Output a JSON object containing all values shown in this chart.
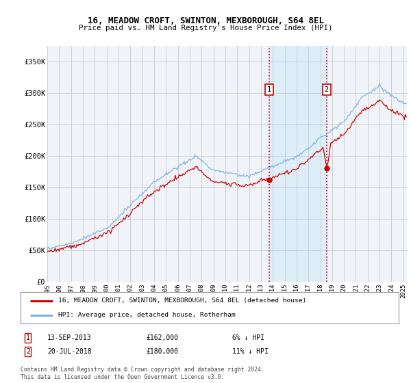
{
  "title": "16, MEADOW CROFT, SWINTON, MEXBOROUGH, S64 8EL",
  "subtitle": "Price paid vs. HM Land Registry's House Price Index (HPI)",
  "legend_entry1": "16, MEADOW CROFT, SWINTON, MEXBOROUGH, S64 8EL (detached house)",
  "legend_entry2": "HPI: Average price, detached house, Rotherham",
  "annotation1_label": "1",
  "annotation1_date": "13-SEP-2013",
  "annotation1_price": "£162,000",
  "annotation1_hpi": "6% ↓ HPI",
  "annotation2_label": "2",
  "annotation2_date": "20-JUL-2018",
  "annotation2_price": "£180,000",
  "annotation2_hpi": "11% ↓ HPI",
  "footer": "Contains HM Land Registry data © Crown copyright and database right 2024.\nThis data is licensed under the Open Government Licence v3.0.",
  "hpi_color": "#7ab3e0",
  "price_color": "#cc0000",
  "annotation_color": "#cc0000",
  "highlight_color": "#ddeef8",
  "background_color": "#f0f4f8",
  "grid_color": "#c8d0d8",
  "ylim": [
    0,
    375000
  ],
  "yticks": [
    0,
    50000,
    100000,
    150000,
    200000,
    250000,
    300000,
    350000
  ],
  "sale1_year": 2013.71,
  "sale2_year": 2018.54,
  "sale1_price": 162000,
  "sale2_price": 180000,
  "start_year": 1995,
  "end_year": 2025.3
}
